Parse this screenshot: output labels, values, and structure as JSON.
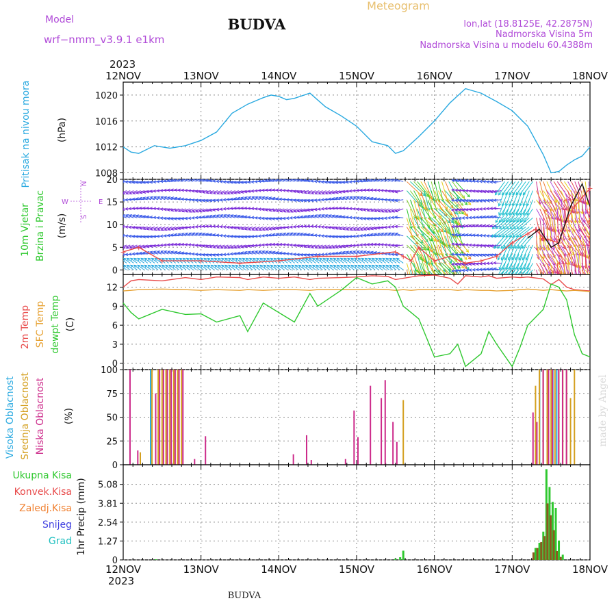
{
  "header": {
    "model_label": "Model",
    "model_name": "wrf−nmm_v3.9.1  e1km",
    "title": "BUDVA",
    "meteogram": "Meteogram",
    "lonlat": "lon,lat (18.8125E, 42.2875N)",
    "elevation": "Nadmorska Visina 5m",
    "model_elevation": "Nadmorska Visina u modelu 60.4388m",
    "footer": "BUDVA",
    "credit": "made by Angel",
    "year": "2023"
  },
  "time_axis": {
    "ticks": [
      "12NOV",
      "13NOV",
      "14NOV",
      "15NOV",
      "16NOV",
      "17NOV",
      "18NOV"
    ],
    "range_days": [
      0,
      6
    ]
  },
  "panels": {
    "pressure": {
      "label": "Pritisak na nivou mora",
      "unit": "(hPa)",
      "ticks": [
        "1020",
        "1016",
        "1012",
        "1008"
      ]
    },
    "wind": {
      "label1": "10m Vjetar",
      "label2": "Brzina i Pravac",
      "unit": "(m/s)",
      "ticks": [
        "20",
        "15",
        "10",
        "5",
        "0"
      ],
      "compass_w": "W",
      "compass_e": "E",
      "compass_s": "S",
      "compass_n": "N"
    },
    "temp": {
      "label1": "2m Temp",
      "label2": "SFC Temp",
      "label3": "dewpt Temp",
      "unit": "(C)",
      "ticks": [
        "12",
        "9",
        "6",
        "3",
        "0"
      ]
    },
    "cloud": {
      "label1": "Visoka Oblacnost",
      "label2": "Srednja Oblacnost",
      "label3": "Niska Oblacnost",
      "unit": "(%)",
      "ticks": [
        "100",
        "75",
        "50",
        "25",
        "0"
      ]
    },
    "precip": {
      "legend": [
        "Ukupna Kisa",
        "Konvek.Kisa",
        "Zaledj.Kisa",
        "Snijeg",
        "Grad"
      ],
      "unit": "1hr Precip (mm)",
      "ticks": [
        "5.08",
        "3.81",
        "2.54",
        "1.27",
        "0"
      ]
    }
  },
  "colors": {
    "pressure": "#29a9e0",
    "temp2m": "#e84a4a",
    "sfc": "#e6a030",
    "dew": "#2ec82e",
    "high": "#29a9e0",
    "mid": "#d4a020",
    "low": "#cc2a8a",
    "ukupna": "#2ec82e",
    "konvek": "#e84a4a",
    "zaledj": "#f08030",
    "snijeg": "#4040e0",
    "grad": "#20c0c0",
    "purple": "#b04ad8",
    "tan": "#e8c070"
  },
  "chart_data": [
    {
      "type": "line",
      "title": "Pritisak na nivou mora",
      "ylabel": "(hPa)",
      "ylim": [
        1007,
        1022
      ],
      "x_days": [
        0,
        0.1,
        0.2,
        0.3,
        0.4,
        0.5,
        0.6,
        0.8,
        1.0,
        1.2,
        1.4,
        1.6,
        1.8,
        1.9,
        2.0,
        2.1,
        2.2,
        2.4,
        2.6,
        2.8,
        3.0,
        3.2,
        3.4,
        3.5,
        3.6,
        3.8,
        4.0,
        4.2,
        4.4,
        4.6,
        4.8,
        5.0,
        5.2,
        5.4,
        5.5,
        5.6,
        5.7,
        5.8,
        5.9,
        6.0
      ],
      "values": [
        1012.0,
        1011.2,
        1011.0,
        1011.6,
        1012.2,
        1012.0,
        1011.8,
        1012.2,
        1013.0,
        1014.3,
        1017.2,
        1018.6,
        1019.6,
        1020.0,
        1019.8,
        1019.3,
        1019.5,
        1020.3,
        1018.2,
        1016.8,
        1015.2,
        1012.8,
        1012.2,
        1011.0,
        1011.4,
        1013.6,
        1016.0,
        1018.8,
        1021.0,
        1020.3,
        1019.0,
        1017.6,
        1015.2,
        1010.8,
        1008.0,
        1008.2,
        1009.2,
        1010.0,
        1010.6,
        1012.0
      ]
    },
    {
      "type": "line",
      "title": "10m Vjetar Brzina i Pravac",
      "ylabel": "(m/s)",
      "ylim": [
        -1,
        20
      ],
      "series": [
        {
          "x_days": [
            0,
            0.2,
            0.5,
            1.0,
            1.5,
            2.0,
            2.5,
            3.0,
            3.5,
            3.6,
            3.7,
            3.8,
            4.0,
            4.2,
            4.4,
            4.6,
            4.8,
            5.0,
            5.2,
            5.3,
            5.4,
            5.6,
            5.7,
            5.8,
            6.0
          ],
          "values": [
            4,
            5,
            2,
            2,
            1.5,
            2,
            3,
            3,
            4,
            3,
            2,
            5,
            2,
            3,
            1.5,
            2,
            3,
            6,
            8,
            9,
            7,
            6,
            11,
            14,
            18
          ]
        }
      ]
    },
    {
      "type": "line",
      "title": "2m Temp / SFC Temp / dewpt Temp",
      "ylabel": "(C)",
      "ylim": [
        -1,
        14
      ],
      "x_days": [
        0,
        0.1,
        0.2,
        0.5,
        0.8,
        1.0,
        1.2,
        1.5,
        1.6,
        1.8,
        2.0,
        2.2,
        2.4,
        2.5,
        2.8,
        3.0,
        3.2,
        3.4,
        3.5,
        3.6,
        3.7,
        3.8,
        4.0,
        4.2,
        4.3,
        4.4,
        4.6,
        4.7,
        4.8,
        5.0,
        5.1,
        5.2,
        5.4,
        5.5,
        5.6,
        5.7,
        5.8,
        5.9,
        6.0
      ],
      "series": [
        {
          "name": "2m Temp",
          "values": [
            12.0,
            13.0,
            13.2,
            13.0,
            13.5,
            13.2,
            13.6,
            13.5,
            13.2,
            13.6,
            13.4,
            13.6,
            13.2,
            13.4,
            13.5,
            13.6,
            13.8,
            13.7,
            13.2,
            13.4,
            13.6,
            13.8,
            13.9,
            13.4,
            12.5,
            13.8,
            13.6,
            13.8,
            13.4,
            13.6,
            13.5,
            13.6,
            13.3,
            12.4,
            13.2,
            12.0,
            11.6,
            11.5,
            11.4
          ]
        },
        {
          "name": "SFC Temp",
          "values": [
            11.4,
            11.5,
            11.6,
            11.7,
            11.6,
            11.5,
            11.6,
            11.5,
            11.6,
            11.5,
            11.6,
            11.6,
            11.5,
            11.6,
            11.6,
            11.6,
            11.7,
            11.6,
            11.5,
            11.6,
            11.5,
            11.6,
            11.6,
            11.6,
            11.5,
            11.6,
            11.5,
            11.5,
            11.4,
            11.5,
            11.6,
            11.7,
            11.5,
            11.6,
            11.5,
            11.4,
            11.5,
            11.4,
            11.3
          ]
        },
        {
          "name": "dewpt Temp",
          "values": [
            9.5,
            8.0,
            7.0,
            8.5,
            7.7,
            7.8,
            6.5,
            7.5,
            5.0,
            9.5,
            8.0,
            6.5,
            11.0,
            9.0,
            11.5,
            13.5,
            12.5,
            13.0,
            12.0,
            9.0,
            8.0,
            7.0,
            1.0,
            1.5,
            3.0,
            -0.5,
            1.5,
            5.0,
            3.0,
            -0.5,
            2.5,
            6.0,
            8.5,
            12.5,
            12.0,
            10.0,
            4.5,
            1.5,
            1.0
          ]
        }
      ]
    },
    {
      "type": "bar",
      "title": "Visoka / Srednja / Niska Oblacnost",
      "ylabel": "(%)",
      "ylim": [
        0,
        100
      ],
      "series": [
        {
          "name": "Visoka Oblacnost",
          "x_days": [
            0.37,
            5.37,
            5.54,
            5.59
          ],
          "values": [
            100,
            100,
            100,
            100
          ]
        },
        {
          "name": "Srednja Oblacnost",
          "x_days": [
            0.22,
            0.37,
            0.45,
            0.5,
            0.55,
            0.6,
            0.65,
            0.7,
            0.75,
            3.6,
            5.3,
            5.35,
            5.4,
            5.45,
            5.5,
            5.55,
            5.6,
            5.65,
            5.7,
            5.75,
            5.8
          ],
          "values": [
            13,
            100,
            100,
            100,
            100,
            100,
            100,
            100,
            100,
            68,
            83,
            100,
            100,
            100,
            100,
            100,
            100,
            100,
            100,
            70,
            100
          ]
        },
        {
          "name": "Niska Oblacnost",
          "x_days": [
            0.07,
            0.17,
            0.4,
            0.45,
            0.5,
            0.55,
            0.6,
            0.65,
            0.7,
            0.75,
            0.9,
            1.04,
            2.17,
            2.34,
            2.4,
            2.84,
            2.95,
            3.0,
            3.16,
            3.3,
            3.35,
            3.45,
            3.5,
            5.25,
            5.3,
            5.38,
            5.45,
            5.5,
            5.58,
            5.63,
            5.68
          ],
          "values": [
            100,
            15,
            75,
            100,
            100,
            100,
            100,
            100,
            100,
            100,
            6,
            30,
            11,
            31,
            5,
            6,
            57,
            29,
            83,
            70,
            89,
            45,
            24,
            55,
            45,
            100,
            100,
            100,
            100,
            100,
            100
          ]
        }
      ]
    },
    {
      "type": "bar",
      "title": "1hr Precip",
      "ylabel": "1hr Precip (mm)",
      "ylim": [
        0,
        6.4
      ],
      "series": [
        {
          "name": "Ukupna Kisa",
          "x_days": [
            0.42,
            3.5,
            3.56,
            3.6,
            5.3,
            5.35,
            5.4,
            5.44,
            5.48,
            5.52,
            5.56,
            5.6,
            5.65
          ],
          "values": [
            0.04,
            0.08,
            0.18,
            0.62,
            0.8,
            1.15,
            1.9,
            6.1,
            4.9,
            3.9,
            3.5,
            1.3,
            0.35
          ]
        },
        {
          "name": "Konvek.Kisa",
          "x_days": [
            5.3,
            5.35,
            5.4,
            5.44,
            5.48,
            5.52,
            5.56,
            5.6,
            5.65
          ],
          "values": [
            0.5,
            0.8,
            1.2,
            1.6,
            3.8,
            3.0,
            2.0,
            0.6,
            0.2
          ]
        }
      ]
    }
  ]
}
